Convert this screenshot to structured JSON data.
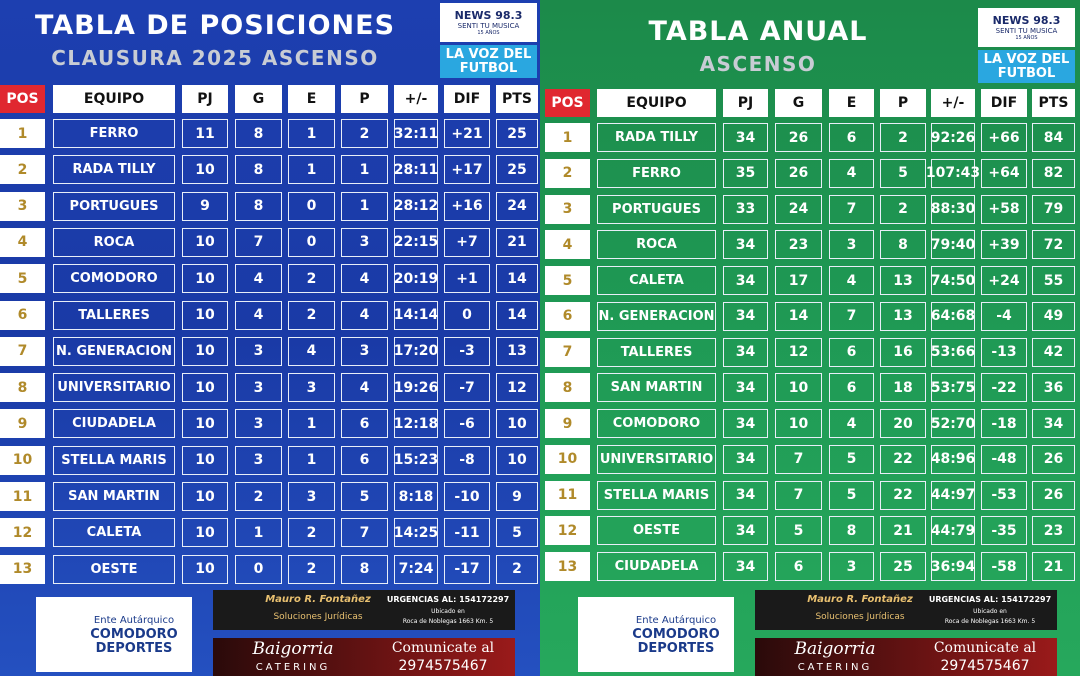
{
  "branding": {
    "station": "NEWS 98.3",
    "slogan": "SENTI TU MUSICA",
    "anniversary": "15 AÑOS",
    "tagline": "LA VOZ DEL FUTBOL"
  },
  "sponsors": {
    "ente": [
      "Ente Autárquico",
      "COMODORO",
      "DEPORTES"
    ],
    "lawyer": {
      "name": "Mauro R. Fontañez",
      "phone": "URGENCIAS AL: 154172297",
      "service": "Soluciones Jurídicas",
      "located": "Ubicado en",
      "address": "Roca de Noblegas 1663 Km. 5"
    },
    "catering": {
      "name": "Baigorria",
      "kind": "CATERING",
      "contact": "Comunicate al",
      "phone": "2974575467"
    }
  },
  "panels": [
    {
      "title": "TABLA DE POSICIONES",
      "subtitle": "CLAUSURA 2025 ASCENSO",
      "columns": [
        "POS",
        "EQUIPO",
        "PJ",
        "G",
        "E",
        "P",
        "+/-",
        "DIF",
        "PTS"
      ],
      "rows": [
        [
          "1",
          "FERRO",
          "11",
          "8",
          "1",
          "2",
          "32:11",
          "+21",
          "25"
        ],
        [
          "2",
          "RADA TILLY",
          "10",
          "8",
          "1",
          "1",
          "28:11",
          "+17",
          "25"
        ],
        [
          "3",
          "PORTUGUES",
          "9",
          "8",
          "0",
          "1",
          "28:12",
          "+16",
          "24"
        ],
        [
          "4",
          "ROCA",
          "10",
          "7",
          "0",
          "3",
          "22:15",
          "+7",
          "21"
        ],
        [
          "5",
          "COMODORO",
          "10",
          "4",
          "2",
          "4",
          "20:19",
          "+1",
          "14"
        ],
        [
          "6",
          "TALLERES",
          "10",
          "4",
          "2",
          "4",
          "14:14",
          "0",
          "14"
        ],
        [
          "7",
          "N. GENERACION",
          "10",
          "3",
          "4",
          "3",
          "17:20",
          "-3",
          "13"
        ],
        [
          "8",
          "UNIVERSITARIO",
          "10",
          "3",
          "3",
          "4",
          "19:26",
          "-7",
          "12"
        ],
        [
          "9",
          "CIUDADELA",
          "10",
          "3",
          "1",
          "6",
          "12:18",
          "-6",
          "10"
        ],
        [
          "10",
          "STELLA MARIS",
          "10",
          "3",
          "1",
          "6",
          "15:23",
          "-8",
          "10"
        ],
        [
          "11",
          "SAN MARTIN",
          "10",
          "2",
          "3",
          "5",
          "8:18",
          "-10",
          "9"
        ],
        [
          "12",
          "CALETA",
          "10",
          "1",
          "2",
          "7",
          "14:25",
          "-11",
          "5"
        ],
        [
          "13",
          "OESTE",
          "10",
          "0",
          "2",
          "8",
          "7:24",
          "-17",
          "2"
        ]
      ]
    },
    {
      "title": "TABLA ANUAL",
      "subtitle": "ASCENSO",
      "columns": [
        "POS",
        "EQUIPO",
        "PJ",
        "G",
        "E",
        "P",
        "+/-",
        "DIF",
        "PTS"
      ],
      "rows": [
        [
          "1",
          "RADA TILLY",
          "34",
          "26",
          "6",
          "2",
          "92:26",
          "+66",
          "84"
        ],
        [
          "2",
          "FERRO",
          "35",
          "26",
          "4",
          "5",
          "107:43",
          "+64",
          "82"
        ],
        [
          "3",
          "PORTUGUES",
          "33",
          "24",
          "7",
          "2",
          "88:30",
          "+58",
          "79"
        ],
        [
          "4",
          "ROCA",
          "34",
          "23",
          "3",
          "8",
          "79:40",
          "+39",
          "72"
        ],
        [
          "5",
          "CALETA",
          "34",
          "17",
          "4",
          "13",
          "74:50",
          "+24",
          "55"
        ],
        [
          "6",
          "N. GENERACION",
          "34",
          "14",
          "7",
          "13",
          "64:68",
          "-4",
          "49"
        ],
        [
          "7",
          "TALLERES",
          "34",
          "12",
          "6",
          "16",
          "53:66",
          "-13",
          "42"
        ],
        [
          "8",
          "SAN MARTIN",
          "34",
          "10",
          "6",
          "18",
          "53:75",
          "-22",
          "36"
        ],
        [
          "9",
          "COMODORO",
          "34",
          "10",
          "4",
          "20",
          "52:70",
          "-18",
          "34"
        ],
        [
          "10",
          "UNIVERSITARIO",
          "34",
          "7",
          "5",
          "22",
          "48:96",
          "-48",
          "26"
        ],
        [
          "11",
          "STELLA MARIS",
          "34",
          "7",
          "5",
          "22",
          "44:97",
          "-53",
          "26"
        ],
        [
          "12",
          "OESTE",
          "34",
          "5",
          "8",
          "21",
          "44:79",
          "-35",
          "23"
        ],
        [
          "13",
          "CIUDADELA",
          "34",
          "6",
          "3",
          "25",
          "36:94",
          "-58",
          "21"
        ]
      ]
    }
  ]
}
